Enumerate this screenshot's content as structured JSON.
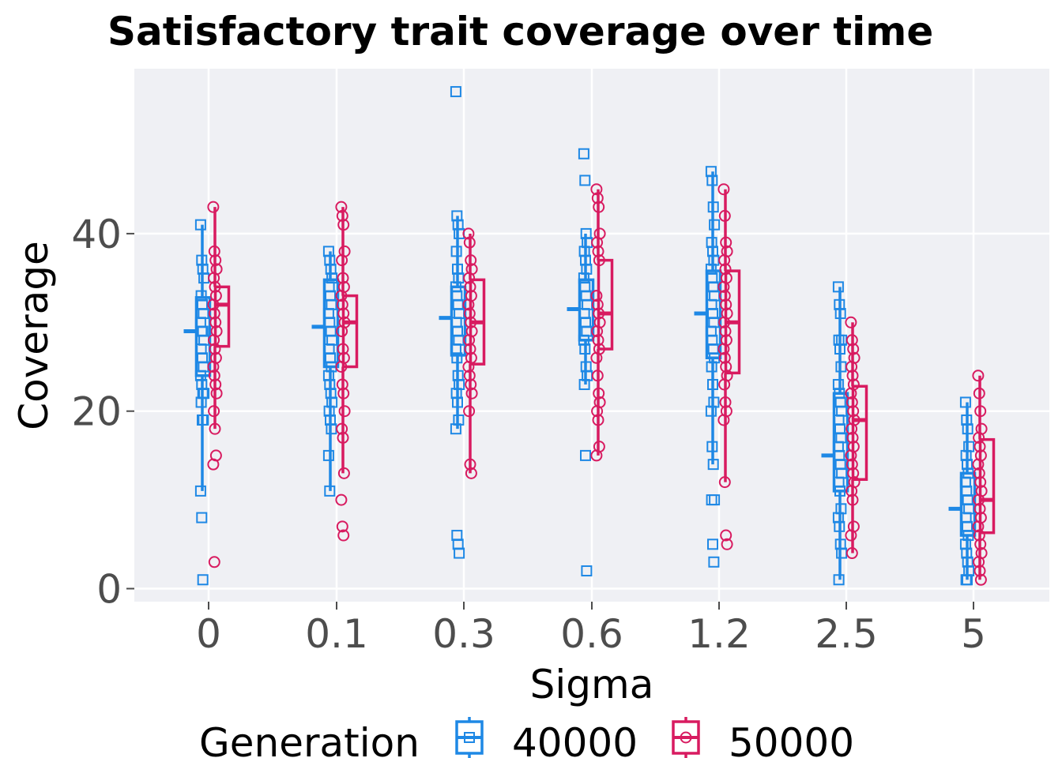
{
  "chart_data": {
    "type": "box",
    "title": "Satisfactory trait coverage over time",
    "xlabel": "Sigma",
    "ylabel": "Coverage",
    "categories": [
      "0",
      "0.1",
      "0.3",
      "0.6",
      "1.2",
      "2.5",
      "5"
    ],
    "y_ticks": [
      0,
      20,
      40
    ],
    "ylim": [
      -1.5,
      58.5
    ],
    "grid": true,
    "legend": {
      "title": "Generation",
      "position": "bottom"
    },
    "series": [
      {
        "name": "40000",
        "color": "#1e88e5",
        "marker": "square",
        "boxes": [
          {
            "whisker_low": 11,
            "q1": 24,
            "median": 29,
            "q3": 32.8,
            "whisker_high": 41
          },
          {
            "whisker_low": 11,
            "q1": 25,
            "median": 29.5,
            "q3": 34.8,
            "whisker_high": 38
          },
          {
            "whisker_low": 18,
            "q1": 26.3,
            "median": 30.5,
            "q3": 34,
            "whisker_high": 42
          },
          {
            "whisker_low": 23,
            "q1": 28,
            "median": 31.5,
            "q3": 34.8,
            "whisker_high": 40
          },
          {
            "whisker_low": 14,
            "q1": 26,
            "median": 31,
            "q3": 35.8,
            "whisker_high": 47
          },
          {
            "whisker_low": 1,
            "q1": 11,
            "median": 15,
            "q3": 22,
            "whisker_high": 34
          },
          {
            "whisker_low": 1,
            "q1": 6,
            "median": 9,
            "q3": 13,
            "whisker_high": 21
          }
        ],
        "points": [
          [
            41,
            37,
            36,
            35,
            33,
            32,
            31,
            30,
            29,
            29,
            28,
            27,
            26,
            25,
            24,
            23,
            22,
            22,
            21,
            19,
            19,
            11,
            8,
            1
          ],
          [
            38,
            37,
            36,
            35,
            34,
            33,
            32,
            31,
            30,
            29,
            28,
            27,
            26,
            25,
            24,
            23,
            22,
            21,
            20,
            19,
            18,
            15,
            11
          ],
          [
            56,
            42,
            41,
            40,
            38,
            36,
            35,
            34,
            33,
            32,
            31,
            30,
            29,
            28,
            27,
            26,
            24,
            23,
            22,
            21,
            19,
            18,
            6,
            5,
            4
          ],
          [
            49,
            46,
            40,
            39,
            38,
            37,
            36,
            35,
            34,
            33,
            32,
            31,
            30,
            29,
            28,
            27,
            25,
            24,
            23,
            15,
            2
          ],
          [
            47,
            46,
            43,
            41,
            39,
            38,
            37,
            36,
            35,
            34,
            33,
            32,
            31,
            30,
            29,
            28,
            27,
            26,
            25,
            23,
            21,
            20,
            16,
            14,
            10,
            10,
            5,
            3
          ],
          [
            34,
            32,
            31,
            28,
            28,
            27,
            25,
            23,
            22,
            21,
            20,
            19,
            18,
            17,
            16,
            15,
            14,
            13,
            12,
            11,
            9,
            8,
            7,
            5,
            4,
            1
          ],
          [
            21,
            19,
            18,
            16,
            15,
            14,
            13,
            12,
            11,
            10,
            9,
            8,
            7,
            6,
            5,
            4,
            3,
            2,
            1,
            1
          ]
        ]
      },
      {
        "name": "50000",
        "color": "#d81b60",
        "marker": "circle",
        "boxes": [
          {
            "whisker_low": 18,
            "q1": 27.3,
            "median": 32,
            "q3": 34,
            "whisker_high": 43
          },
          {
            "whisker_low": 13,
            "q1": 25,
            "median": 30,
            "q3": 33,
            "whisker_high": 43
          },
          {
            "whisker_low": 13,
            "q1": 25.3,
            "median": 30,
            "q3": 34.8,
            "whisker_high": 40
          },
          {
            "whisker_low": 15,
            "q1": 27,
            "median": 31,
            "q3": 37,
            "whisker_high": 45
          },
          {
            "whisker_low": 12,
            "q1": 24.3,
            "median": 30,
            "q3": 35.8,
            "whisker_high": 45
          },
          {
            "whisker_low": 4,
            "q1": 12.3,
            "median": 19,
            "q3": 22.8,
            "whisker_high": 30
          },
          {
            "whisker_low": 1,
            "q1": 6.3,
            "median": 10,
            "q3": 16.8,
            "whisker_high": 24
          }
        ],
        "points": [
          [
            43,
            38,
            37,
            36,
            35,
            34,
            33,
            32,
            31,
            30,
            29,
            28,
            27,
            26,
            25,
            24,
            23,
            22,
            20,
            18,
            15,
            14,
            3
          ],
          [
            43,
            42,
            41,
            38,
            37,
            35,
            34,
            33,
            32,
            31,
            30,
            29,
            27,
            26,
            25,
            23,
            22,
            20,
            18,
            17,
            13,
            10,
            7,
            6
          ],
          [
            40,
            39,
            37,
            36,
            35,
            34,
            33,
            32,
            31,
            30,
            29,
            28,
            27,
            26,
            25,
            24,
            23,
            22,
            20,
            14,
            13
          ],
          [
            45,
            44,
            43,
            40,
            39,
            38,
            37,
            33,
            32,
            31,
            30,
            29,
            28,
            27,
            26,
            24,
            22,
            21,
            20,
            19,
            16,
            15
          ],
          [
            45,
            42,
            39,
            38,
            37,
            36,
            35,
            34,
            33,
            32,
            31,
            30,
            29,
            28,
            27,
            26,
            25,
            24,
            23,
            21,
            20,
            19,
            12,
            6,
            5
          ],
          [
            30,
            28,
            27,
            26,
            25,
            24,
            23,
            22,
            21,
            20,
            19,
            18,
            17,
            16,
            15,
            14,
            13,
            12,
            11,
            10,
            7,
            6,
            4
          ],
          [
            24,
            22,
            20,
            18,
            17,
            16,
            15,
            14,
            13,
            12,
            11,
            10,
            9,
            8,
            7,
            6,
            5,
            4,
            3,
            2,
            1
          ]
        ]
      }
    ]
  }
}
